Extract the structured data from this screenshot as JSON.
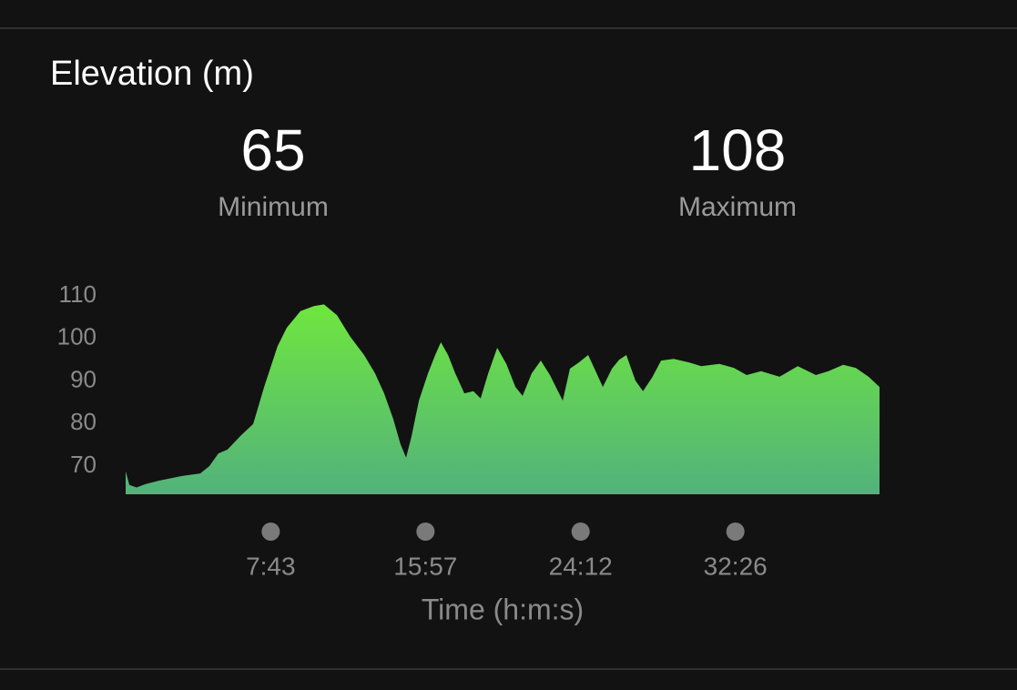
{
  "chart_data": {
    "type": "area",
    "title": "Elevation (m)",
    "stats": [
      {
        "value": 65,
        "label": "Minimum"
      },
      {
        "value": 108,
        "label": "Maximum"
      }
    ],
    "x_label": "Time (h:m:s)",
    "colors": [
      "#6fe63e",
      "#52b27c"
    ],
    "x": [
      0,
      12,
      35,
      64,
      107,
      180,
      238,
      267,
      296,
      325,
      369,
      407,
      442,
      485,
      514,
      558,
      601,
      633,
      674,
      717,
      761,
      796,
      825,
      854,
      877,
      895,
      912,
      936,
      965,
      988,
      1006,
      1029,
      1052,
      1081,
      1110,
      1133,
      1157,
      1186,
      1215,
      1244,
      1267,
      1296,
      1325,
      1354,
      1377,
      1395,
      1418,
      1447,
      1476,
      1500,
      1523,
      1552,
      1575,
      1598,
      1627,
      1651,
      1680,
      1709,
      1749,
      1796,
      1837,
      1895,
      1941,
      1982,
      2028,
      2087,
      2145,
      2203,
      2243,
      2290,
      2330,
      2371,
      2406
    ],
    "values": [
      68.8,
      65.6,
      65,
      65.8,
      66.6,
      67.7,
      68.3,
      70,
      73,
      73.9,
      77.3,
      79.9,
      88.6,
      98.2,
      102.5,
      106.4,
      107.6,
      108,
      105.5,
      100.4,
      96.1,
      91.8,
      87.1,
      81.1,
      75.2,
      72,
      76.9,
      85.4,
      91.8,
      96.1,
      99.1,
      96.1,
      91.8,
      87.1,
      87.6,
      85.9,
      91.8,
      97.8,
      94,
      88.6,
      86.5,
      91.8,
      94.8,
      91.4,
      88,
      85.4,
      92.9,
      94.4,
      96.1,
      92.3,
      88.6,
      92.9,
      95,
      96.1,
      90.1,
      87.6,
      90.8,
      94.8,
      95.2,
      94.4,
      93.5,
      94,
      93.1,
      91.4,
      92.3,
      91,
      93.5,
      91.4,
      92.3,
      93.8,
      93.1,
      91,
      88.6
    ],
    "xlim": [
      0,
      2406
    ],
    "xticks": [
      {
        "value": 463,
        "label": "7:43"
      },
      {
        "value": 957,
        "label": "15:57"
      },
      {
        "value": 1452,
        "label": "24:12"
      },
      {
        "value": 1946,
        "label": "32:26"
      }
    ],
    "ylim": [
      63.4,
      110
    ],
    "yticks": [
      70,
      80,
      90,
      100,
      110
    ]
  }
}
